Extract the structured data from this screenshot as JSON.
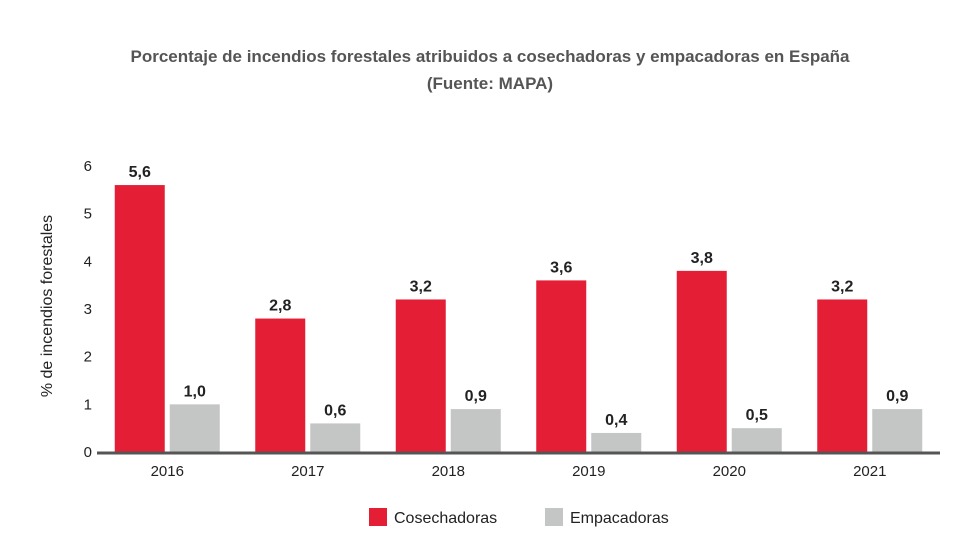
{
  "chart_data": {
    "type": "bar",
    "title": "Porcentaje de incendios forestales atribuidos a cosechadoras y empacadoras en España",
    "subtitle": "(Fuente: MAPA)",
    "xlabel": "",
    "ylabel": "% de incendios forestales",
    "ylim": [
      0,
      6
    ],
    "yticks": [
      "0",
      "1",
      "2",
      "3",
      "4",
      "5",
      "6"
    ],
    "grid": false,
    "legend_position": "bottom-center",
    "categories": [
      "2016",
      "2017",
      "2018",
      "2019",
      "2020",
      "2021"
    ],
    "series": [
      {
        "name": "Cosechadoras",
        "color": "#e31e35",
        "values": [
          5.6,
          2.8,
          3.2,
          3.6,
          3.8,
          3.2
        ],
        "labels": [
          "5,6",
          "2,8",
          "3,2",
          "3,6",
          "3,8",
          "3,2"
        ]
      },
      {
        "name": "Empacadoras",
        "color": "#c4c6c5",
        "values": [
          1.0,
          0.6,
          0.9,
          0.4,
          0.5,
          0.9
        ],
        "labels": [
          "1,0",
          "0,6",
          "0,9",
          "0,4",
          "0,5",
          "0,9"
        ]
      }
    ]
  }
}
